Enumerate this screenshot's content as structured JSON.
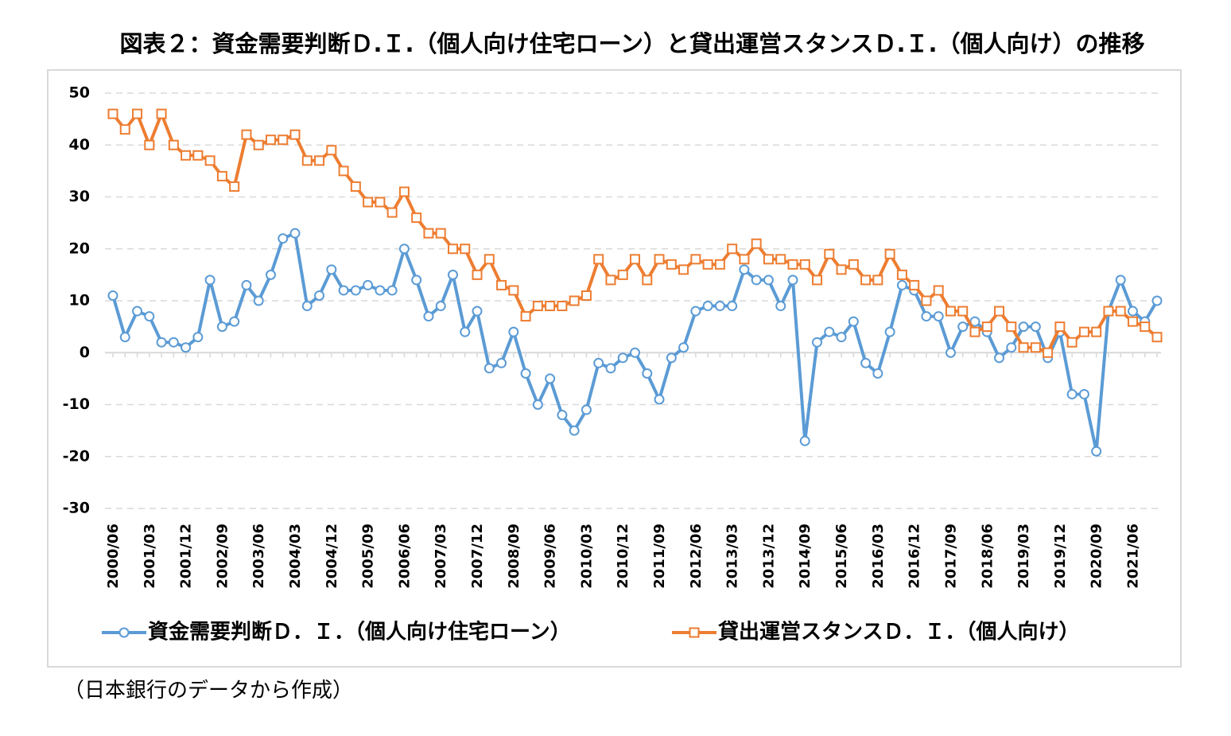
{
  "chart_data": {
    "type": "line",
    "title": "図表２：資金需要判断Ｄ.Ｉ.（個人向け住宅ローン）と貸出運営スタンスＤ.Ｉ.（個人向け）の推移",
    "note": "（日本銀行のデータから作成）",
    "categories": [
      "2000/06",
      null,
      null,
      "2001/03",
      null,
      null,
      "2001/12",
      null,
      null,
      "2002/09",
      null,
      null,
      "2003/06",
      null,
      null,
      "2004/03",
      null,
      null,
      "2004/12",
      null,
      null,
      "2005/09",
      null,
      null,
      "2006/06",
      null,
      null,
      "2007/03",
      null,
      null,
      "2007/12",
      null,
      null,
      "2008/09",
      null,
      null,
      "2009/06",
      null,
      null,
      "2010/03",
      null,
      null,
      "2010/12",
      null,
      null,
      "2011/09",
      null,
      null,
      "2012/06",
      null,
      null,
      "2013/03",
      null,
      null,
      "2013/12",
      null,
      null,
      "2014/09",
      null,
      null,
      "2015/06",
      null,
      null,
      "2016/03",
      null,
      null,
      "2016/12",
      null,
      null,
      "2017/09",
      null,
      null,
      "2018/06",
      null,
      null,
      "2019/03",
      null,
      null,
      "2019/12",
      null,
      null,
      "2020/09",
      null,
      null,
      "2021/06",
      null,
      null
    ],
    "series": [
      {
        "name": "資金需要判断Ｄ．Ｉ．（個人向け住宅ローン）",
        "color": "#5b9bd5",
        "marker": "circle",
        "values": [
          11,
          3,
          8,
          7,
          2,
          2,
          1,
          3,
          14,
          5,
          6,
          13,
          10,
          15,
          22,
          23,
          9,
          11,
          16,
          12,
          12,
          13,
          12,
          12,
          20,
          14,
          7,
          9,
          15,
          4,
          8,
          -3,
          -2,
          4,
          -4,
          -10,
          -5,
          -12,
          -15,
          -11,
          -2,
          -3,
          -1,
          0,
          -4,
          -9,
          -1,
          1,
          8,
          9,
          9,
          9,
          16,
          14,
          14,
          9,
          14,
          -17,
          2,
          4,
          3,
          6,
          -2,
          -4,
          4,
          13,
          12,
          7,
          7,
          0,
          5,
          6,
          4,
          -1,
          1,
          5,
          5,
          -1,
          4,
          -8,
          -8,
          -19,
          8,
          14,
          8,
          6,
          10
        ]
      },
      {
        "name": "貸出運営スタンスＤ．Ｉ．（個人向け）",
        "color": "#ed7d31",
        "marker": "square",
        "values": [
          46,
          43,
          46,
          40,
          46,
          40,
          38,
          38,
          37,
          34,
          32,
          42,
          40,
          41,
          41,
          42,
          37,
          37,
          39,
          35,
          32,
          29,
          29,
          27,
          31,
          26,
          23,
          23,
          20,
          20,
          15,
          18,
          13,
          12,
          7,
          9,
          9,
          9,
          10,
          11,
          18,
          14,
          15,
          18,
          14,
          18,
          17,
          16,
          18,
          17,
          17,
          20,
          18,
          21,
          18,
          18,
          17,
          17,
          14,
          19,
          16,
          17,
          14,
          14,
          19,
          15,
          13,
          10,
          12,
          8,
          8,
          4,
          5,
          8,
          5,
          1,
          1,
          0,
          5,
          2,
          4,
          4,
          8,
          8,
          6,
          5,
          3
        ]
      }
    ],
    "ylim": [
      -30,
      50
    ],
    "yticks": [
      -30,
      -20,
      -10,
      0,
      10,
      20,
      30,
      40,
      50
    ],
    "grid": true,
    "legend": "bottom"
  }
}
